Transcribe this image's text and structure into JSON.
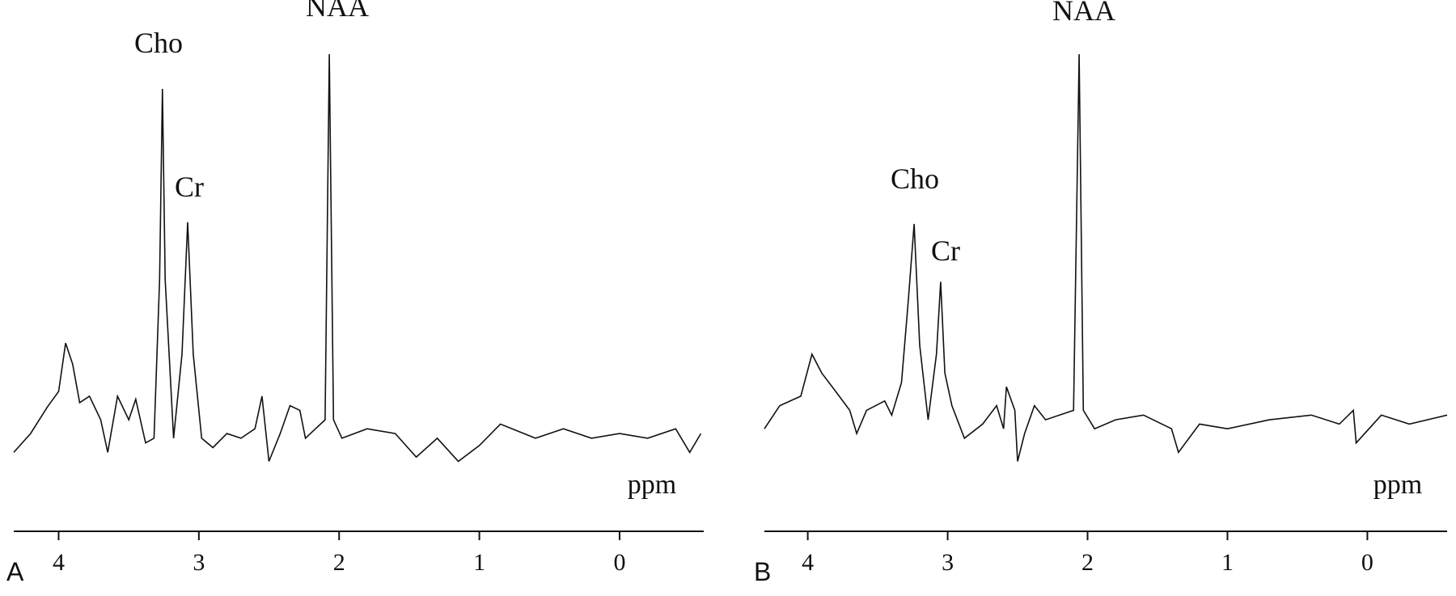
{
  "chart_data": [
    {
      "type": "line",
      "panel_label": "A",
      "x_label": "ppm",
      "peak_labels": [
        "Cho",
        "Cr",
        "NAA"
      ],
      "color": "#111111",
      "xlim": [
        4.32,
        -0.6
      ],
      "xticks": [
        4,
        3,
        2,
        1,
        0
      ],
      "ylim": [
        0,
        100
      ],
      "x": [
        4.32,
        4.2,
        4.08,
        4.0,
        3.95,
        3.9,
        3.85,
        3.78,
        3.7,
        3.65,
        3.58,
        3.5,
        3.45,
        3.38,
        3.32,
        3.28,
        3.26,
        3.24,
        3.18,
        3.12,
        3.08,
        3.04,
        2.98,
        2.9,
        2.8,
        2.7,
        2.6,
        2.55,
        2.5,
        2.42,
        2.35,
        2.28,
        2.24,
        2.1,
        2.07,
        2.04,
        1.98,
        1.8,
        1.6,
        1.45,
        1.3,
        1.15,
        1.0,
        0.85,
        0.6,
        0.4,
        0.2,
        0.0,
        -0.2,
        -0.4,
        -0.5,
        -0.58
      ],
      "values": [
        5.4,
        9.8,
        16,
        19.6,
        30.9,
        26,
        17,
        18.5,
        13,
        5.4,
        18.5,
        13,
        17.8,
        7.6,
        8.7,
        45.7,
        90.2,
        45.7,
        8.7,
        28.3,
        59.1,
        28.3,
        8.7,
        6.5,
        9.8,
        8.7,
        10.9,
        18.5,
        3.3,
        9.8,
        16.3,
        15.2,
        8.7,
        13,
        98.3,
        13,
        8.7,
        10.9,
        9.8,
        4.3,
        8.7,
        3.3,
        7,
        12,
        8.7,
        10.9,
        8.7,
        9.8,
        8.7,
        10.9,
        5.4,
        9.8
      ]
    },
    {
      "type": "line",
      "panel_label": "B",
      "x_label": "ppm",
      "peak_labels": [
        "Cho",
        "Cr",
        "NAA"
      ],
      "color": "#111111",
      "xlim": [
        4.31,
        -0.57
      ],
      "xticks": [
        4,
        3,
        2,
        1,
        0
      ],
      "ylim": [
        0,
        100
      ],
      "x": [
        4.31,
        4.2,
        4.05,
        3.97,
        3.9,
        3.8,
        3.7,
        3.65,
        3.58,
        3.45,
        3.4,
        3.33,
        3.28,
        3.24,
        3.2,
        3.14,
        3.08,
        3.05,
        3.02,
        2.97,
        2.88,
        2.75,
        2.65,
        2.6,
        2.58,
        2.52,
        2.5,
        2.45,
        2.38,
        2.3,
        2.1,
        2.06,
        2.03,
        1.95,
        1.8,
        1.6,
        1.4,
        1.35,
        1.2,
        1.0,
        0.7,
        0.4,
        0.2,
        0.1,
        0.08,
        -0.1,
        -0.3,
        -0.57
      ],
      "values": [
        10.9,
        16.3,
        18.5,
        28.3,
        23.9,
        19.6,
        15.2,
        9.8,
        15.2,
        17.4,
        14.1,
        21.7,
        41.3,
        58.7,
        30.4,
        13,
        28.3,
        45.2,
        23.9,
        16.3,
        8.7,
        12,
        16.3,
        10.9,
        20.7,
        15.2,
        3.3,
        9.8,
        16.3,
        13,
        15.2,
        98.3,
        15.2,
        10.9,
        13,
        14.1,
        10.9,
        5.4,
        12,
        10.9,
        13,
        14.1,
        12,
        15.2,
        7.6,
        14.1,
        12,
        14.1
      ]
    }
  ]
}
